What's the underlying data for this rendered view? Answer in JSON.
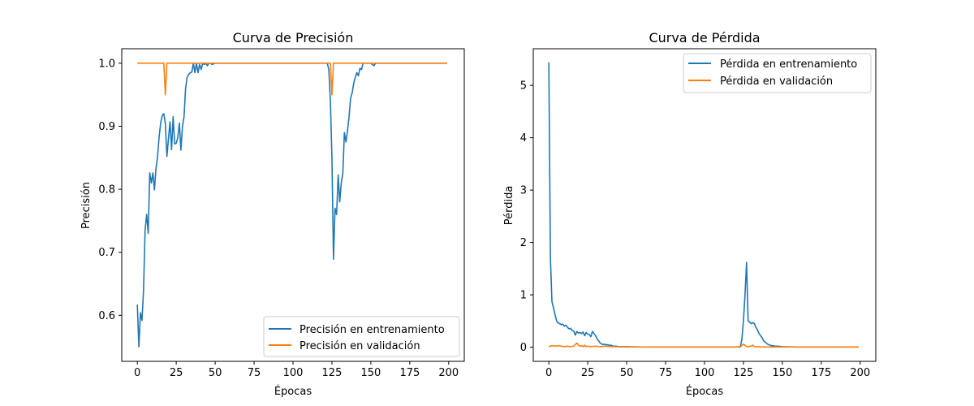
{
  "colors": {
    "train": "#1f77b4",
    "val": "#ff7f0e"
  },
  "chart_data": [
    {
      "type": "line",
      "title": "Curva de Precisión",
      "xlabel": "Épocas",
      "ylabel": "Precisión",
      "xlim": [
        -10,
        210
      ],
      "ylim": [
        0.527,
        1.023
      ],
      "xticks": [
        0,
        25,
        50,
        75,
        100,
        125,
        150,
        175,
        200
      ],
      "yticks": [
        0.6,
        0.7,
        0.8,
        0.9,
        1.0
      ],
      "ytick_labels": [
        "0.6",
        "0.7",
        "0.8",
        "0.9",
        "1.0"
      ],
      "legend_position": "lower right",
      "grid": false,
      "series": [
        {
          "name": "Precisión en entrenamiento",
          "color": "#1f77b4",
          "points": [
            [
              0,
              0.617
            ],
            [
              1,
              0.55
            ],
            [
              2,
              0.604
            ],
            [
              3,
              0.592
            ],
            [
              4,
              0.64
            ],
            [
              5,
              0.735
            ],
            [
              6,
              0.76
            ],
            [
              7,
              0.73
            ],
            [
              8,
              0.826
            ],
            [
              9,
              0.81
            ],
            [
              10,
              0.826
            ],
            [
              11,
              0.799
            ],
            [
              12,
              0.833
            ],
            [
              13,
              0.852
            ],
            [
              14,
              0.883
            ],
            [
              15,
              0.905
            ],
            [
              16,
              0.917
            ],
            [
              17,
              0.92
            ],
            [
              18,
              0.905
            ],
            [
              19,
              0.852
            ],
            [
              20,
              0.88
            ],
            [
              21,
              0.907
            ],
            [
              22,
              0.863
            ],
            [
              23,
              0.915
            ],
            [
              24,
              0.872
            ],
            [
              25,
              0.873
            ],
            [
              26,
              0.882
            ],
            [
              27,
              0.905
            ],
            [
              28,
              0.862
            ],
            [
              29,
              0.9
            ],
            [
              30,
              0.915
            ],
            [
              31,
              0.96
            ],
            [
              32,
              0.978
            ],
            [
              33,
              0.982
            ],
            [
              34,
              0.985
            ],
            [
              35,
              0.986
            ],
            [
              36,
              1.0
            ],
            [
              37,
              0.985
            ],
            [
              38,
              1.0
            ],
            [
              39,
              0.985
            ],
            [
              40,
              0.998
            ],
            [
              41,
              0.99
            ],
            [
              42,
              1.0
            ],
            [
              43,
              0.998
            ],
            [
              44,
              1.0
            ],
            [
              45,
              0.996
            ],
            [
              46,
              1.0
            ],
            [
              47,
              1.0
            ],
            [
              48,
              0.998
            ],
            [
              50,
              1.0
            ],
            [
              60,
              1.0
            ],
            [
              80,
              1.0
            ],
            [
              100,
              1.0
            ],
            [
              120,
              1.0
            ],
            [
              122,
              1.0
            ],
            [
              123,
              0.99
            ],
            [
              124,
              0.94
            ],
            [
              125,
              0.85
            ],
            [
              126,
              0.689
            ],
            [
              127,
              0.77
            ],
            [
              128,
              0.76
            ],
            [
              129,
              0.823
            ],
            [
              130,
              0.78
            ],
            [
              131,
              0.81
            ],
            [
              132,
              0.825
            ],
            [
              133,
              0.89
            ],
            [
              134,
              0.875
            ],
            [
              135,
              0.893
            ],
            [
              136,
              0.915
            ],
            [
              137,
              0.945
            ],
            [
              138,
              0.953
            ],
            [
              139,
              0.968
            ],
            [
              140,
              0.978
            ],
            [
              141,
              0.985
            ],
            [
              142,
              0.98
            ],
            [
              143,
              0.992
            ],
            [
              144,
              0.99
            ],
            [
              145,
              1.0
            ],
            [
              146,
              1.0
            ],
            [
              147,
              1.0
            ],
            [
              148,
              1.0
            ],
            [
              150,
              1.0
            ],
            [
              152,
              0.996
            ],
            [
              153,
              1.0
            ],
            [
              160,
              1.0
            ],
            [
              180,
              1.0
            ],
            [
              199,
              1.0
            ]
          ]
        },
        {
          "name": "Precisión en validación",
          "color": "#ff7f0e",
          "points": [
            [
              0,
              1.0
            ],
            [
              17,
              1.0
            ],
            [
              18,
              0.95
            ],
            [
              19,
              1.0
            ],
            [
              124,
              1.0
            ],
            [
              125,
              0.95
            ],
            [
              126,
              1.0
            ],
            [
              199,
              1.0
            ]
          ]
        }
      ]
    },
    {
      "type": "line",
      "title": "Curva de Pérdida",
      "xlabel": "Épocas",
      "ylabel": "Pérdida",
      "xlim": [
        -10,
        210
      ],
      "ylim": [
        -0.27,
        5.7
      ],
      "xticks": [
        0,
        25,
        50,
        75,
        100,
        125,
        150,
        175,
        200
      ],
      "yticks": [
        0,
        1,
        2,
        3,
        4,
        5
      ],
      "ytick_labels": [
        "0",
        "1",
        "2",
        "3",
        "4",
        "5"
      ],
      "legend_position": "upper right",
      "grid": false,
      "series": [
        {
          "name": "Pérdida en entrenamiento",
          "color": "#1f77b4",
          "points": [
            [
              0,
              5.44
            ],
            [
              1,
              1.72
            ],
            [
              2,
              0.87
            ],
            [
              3,
              0.75
            ],
            [
              4,
              0.62
            ],
            [
              5,
              0.5
            ],
            [
              6,
              0.46
            ],
            [
              7,
              0.45
            ],
            [
              8,
              0.43
            ],
            [
              9,
              0.44
            ],
            [
              10,
              0.4
            ],
            [
              11,
              0.42
            ],
            [
              12,
              0.38
            ],
            [
              13,
              0.35
            ],
            [
              14,
              0.36
            ],
            [
              15,
              0.32
            ],
            [
              16,
              0.31
            ],
            [
              17,
              0.23
            ],
            [
              18,
              0.3
            ],
            [
              19,
              0.27
            ],
            [
              20,
              0.28
            ],
            [
              21,
              0.26
            ],
            [
              22,
              0.29
            ],
            [
              23,
              0.22
            ],
            [
              24,
              0.28
            ],
            [
              25,
              0.25
            ],
            [
              26,
              0.24
            ],
            [
              27,
              0.2
            ],
            [
              28,
              0.3
            ],
            [
              29,
              0.26
            ],
            [
              30,
              0.22
            ],
            [
              31,
              0.16
            ],
            [
              32,
              0.12
            ],
            [
              33,
              0.08
            ],
            [
              34,
              0.06
            ],
            [
              35,
              0.05
            ],
            [
              36,
              0.06
            ],
            [
              37,
              0.04
            ],
            [
              38,
              0.05
            ],
            [
              39,
              0.03
            ],
            [
              40,
              0.04
            ],
            [
              41,
              0.02
            ],
            [
              43,
              0.02
            ],
            [
              45,
              0.01
            ],
            [
              50,
              0.01
            ],
            [
              60,
              0.005
            ],
            [
              80,
              0.005
            ],
            [
              100,
              0.005
            ],
            [
              120,
              0.005
            ],
            [
              123,
              0.01
            ],
            [
              124,
              0.15
            ],
            [
              125,
              0.5
            ],
            [
              126,
              1.0
            ],
            [
              127,
              1.62
            ],
            [
              128,
              0.5
            ],
            [
              129,
              0.48
            ],
            [
              130,
              0.45
            ],
            [
              131,
              0.47
            ],
            [
              132,
              0.45
            ],
            [
              133,
              0.38
            ],
            [
              134,
              0.33
            ],
            [
              135,
              0.26
            ],
            [
              136,
              0.22
            ],
            [
              137,
              0.18
            ],
            [
              138,
              0.12
            ],
            [
              139,
              0.1
            ],
            [
              140,
              0.07
            ],
            [
              141,
              0.05
            ],
            [
              142,
              0.04
            ],
            [
              143,
              0.03
            ],
            [
              144,
              0.03
            ],
            [
              145,
              0.02
            ],
            [
              147,
              0.02
            ],
            [
              150,
              0.01
            ],
            [
              160,
              0.005
            ],
            [
              180,
              0.005
            ],
            [
              199,
              0.005
            ]
          ]
        },
        {
          "name": "Pérdida en validación",
          "color": "#ff7f0e",
          "points": [
            [
              0,
              0.01
            ],
            [
              1,
              0.02
            ],
            [
              2,
              0.03
            ],
            [
              4,
              0.02
            ],
            [
              6,
              0.03
            ],
            [
              8,
              0.02
            ],
            [
              10,
              0.01
            ],
            [
              12,
              0.02
            ],
            [
              14,
              0.01
            ],
            [
              16,
              0.02
            ],
            [
              17,
              0.05
            ],
            [
              18,
              0.08
            ],
            [
              19,
              0.04
            ],
            [
              20,
              0.02
            ],
            [
              21,
              0.03
            ],
            [
              22,
              0.01
            ],
            [
              23,
              0.04
            ],
            [
              24,
              0.01
            ],
            [
              25,
              0.02
            ],
            [
              27,
              0.01
            ],
            [
              30,
              0.02
            ],
            [
              33,
              0.01
            ],
            [
              36,
              0.02
            ],
            [
              40,
              0.01
            ],
            [
              50,
              0.005
            ],
            [
              100,
              0.005
            ],
            [
              123,
              0.005
            ],
            [
              125,
              0.06
            ],
            [
              127,
              0.01
            ],
            [
              130,
              0.02
            ],
            [
              131,
              0.04
            ],
            [
              132,
              0.01
            ],
            [
              140,
              0.005
            ],
            [
              160,
              0.005
            ],
            [
              199,
              0.005
            ]
          ]
        }
      ]
    }
  ]
}
